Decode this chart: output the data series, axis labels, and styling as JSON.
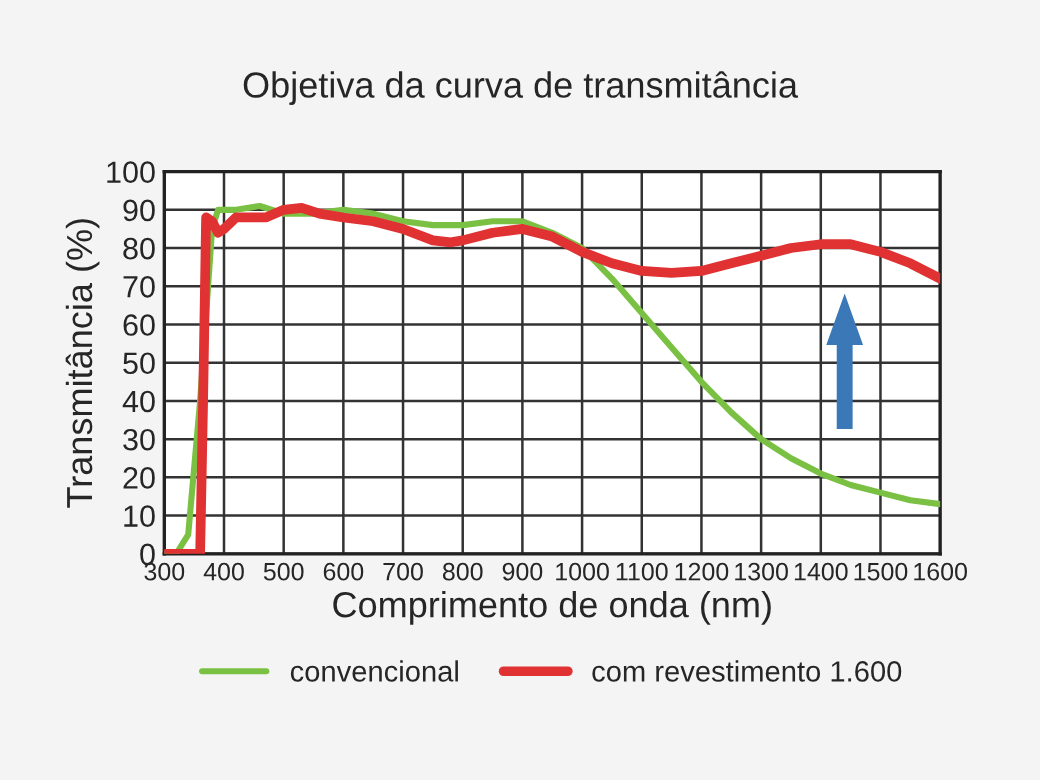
{
  "chart_data": {
    "type": "line",
    "title": "Objetiva da curva de transmitância",
    "xlabel": "Comprimento de onda (nm)",
    "ylabel": "Transmitância (%)",
    "xlim": [
      300,
      1600
    ],
    "xticks": [
      300,
      400,
      500,
      600,
      700,
      800,
      900,
      1000,
      1100,
      1200,
      1300,
      1400,
      1500,
      1600
    ],
    "ylim": [
      0,
      100
    ],
    "yticks": [
      0,
      10,
      20,
      30,
      40,
      50,
      60,
      70,
      80,
      90,
      100
    ],
    "grid": true,
    "legend": "bottom",
    "series": [
      {
        "name": "convencional",
        "color": "#7ac143",
        "x": [
          300,
          320,
          340,
          360,
          380,
          390,
          420,
          460,
          500,
          550,
          600,
          650,
          700,
          750,
          800,
          850,
          900,
          950,
          1000,
          1050,
          1100,
          1150,
          1200,
          1250,
          1300,
          1350,
          1400,
          1450,
          1500,
          1550,
          1600
        ],
        "values": [
          0,
          0,
          5,
          40,
          85,
          90,
          90,
          91,
          89,
          89,
          90,
          89,
          87,
          86,
          86,
          87,
          87,
          84,
          80,
          72,
          63,
          54,
          45,
          37,
          30,
          25,
          21,
          18,
          16,
          14,
          13
        ]
      },
      {
        "name": "com revestimento 1.600",
        "color": "#e03232",
        "x": [
          300,
          350,
          360,
          365,
          370,
          380,
          390,
          400,
          420,
          450,
          470,
          500,
          530,
          560,
          600,
          650,
          700,
          750,
          780,
          800,
          850,
          900,
          950,
          1000,
          1050,
          1100,
          1150,
          1200,
          1250,
          1300,
          1350,
          1400,
          1450,
          1500,
          1550,
          1600
        ],
        "values": [
          0,
          0,
          0,
          40,
          88,
          87,
          84,
          85,
          88,
          88,
          88,
          90,
          90.5,
          89,
          88,
          87,
          85,
          82,
          81.5,
          82,
          84,
          85,
          83,
          79,
          76,
          74,
          73.5,
          74,
          76,
          78,
          80,
          81,
          81,
          79,
          76,
          72
        ]
      }
    ]
  }
}
